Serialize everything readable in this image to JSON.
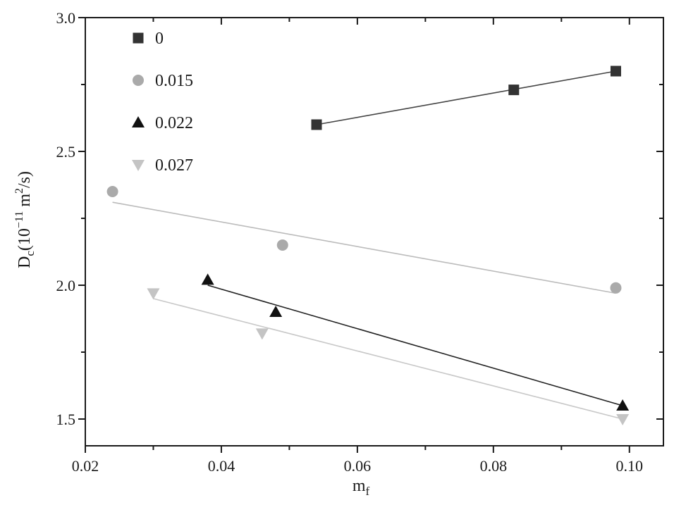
{
  "chart_data": {
    "type": "scatter",
    "xlabel": {
      "main": "m",
      "sub": "f"
    },
    "ylabel": {
      "main": "D",
      "sub": "c",
      "open": "(10",
      "exp1": "−11",
      "mid": " m",
      "exp2": "2",
      "close": "/s)"
    },
    "xlim": [
      0.02,
      0.105
    ],
    "ylim": [
      1.4,
      3.0
    ],
    "xticks": [
      0.02,
      0.04,
      0.06,
      0.08,
      0.1
    ],
    "xtick_labels": [
      "0.02",
      "0.04",
      "0.06",
      "0.08",
      "0.10"
    ],
    "yticks": [
      1.5,
      2.0,
      2.5,
      3.0
    ],
    "ytick_labels": [
      "1.5",
      "2.0",
      "2.5",
      "3.0"
    ],
    "grid": false,
    "legend_position": "top-left",
    "series": [
      {
        "name": "0",
        "marker": "square",
        "color": "#333333",
        "fit_color": "#444444",
        "points": [
          {
            "x": 0.054,
            "y": 2.6
          },
          {
            "x": 0.083,
            "y": 2.73
          },
          {
            "x": 0.098,
            "y": 2.8
          }
        ],
        "fit": [
          [
            0.054,
            2.6
          ],
          [
            0.098,
            2.8
          ]
        ]
      },
      {
        "name": "0.015",
        "marker": "circle",
        "color": "#aaaaaa",
        "fit_color": "#bbbbbb",
        "points": [
          {
            "x": 0.024,
            "y": 2.35
          },
          {
            "x": 0.049,
            "y": 2.15
          },
          {
            "x": 0.098,
            "y": 1.99
          }
        ],
        "fit": [
          [
            0.024,
            2.31
          ],
          [
            0.098,
            1.97
          ]
        ]
      },
      {
        "name": "0.022",
        "marker": "triangle-up",
        "color": "#111111",
        "fit_color": "#222222",
        "points": [
          {
            "x": 0.038,
            "y": 2.02
          },
          {
            "x": 0.048,
            "y": 1.9
          },
          {
            "x": 0.099,
            "y": 1.55
          }
        ],
        "fit": [
          [
            0.038,
            2.0
          ],
          [
            0.099,
            1.55
          ]
        ]
      },
      {
        "name": "0.027",
        "marker": "triangle-down",
        "color": "#c4c4c4",
        "fit_color": "#c8c8c8",
        "points": [
          {
            "x": 0.03,
            "y": 1.97
          },
          {
            "x": 0.046,
            "y": 1.82
          },
          {
            "x": 0.099,
            "y": 1.5
          }
        ],
        "fit": [
          [
            0.03,
            1.95
          ],
          [
            0.099,
            1.5
          ]
        ]
      }
    ]
  }
}
